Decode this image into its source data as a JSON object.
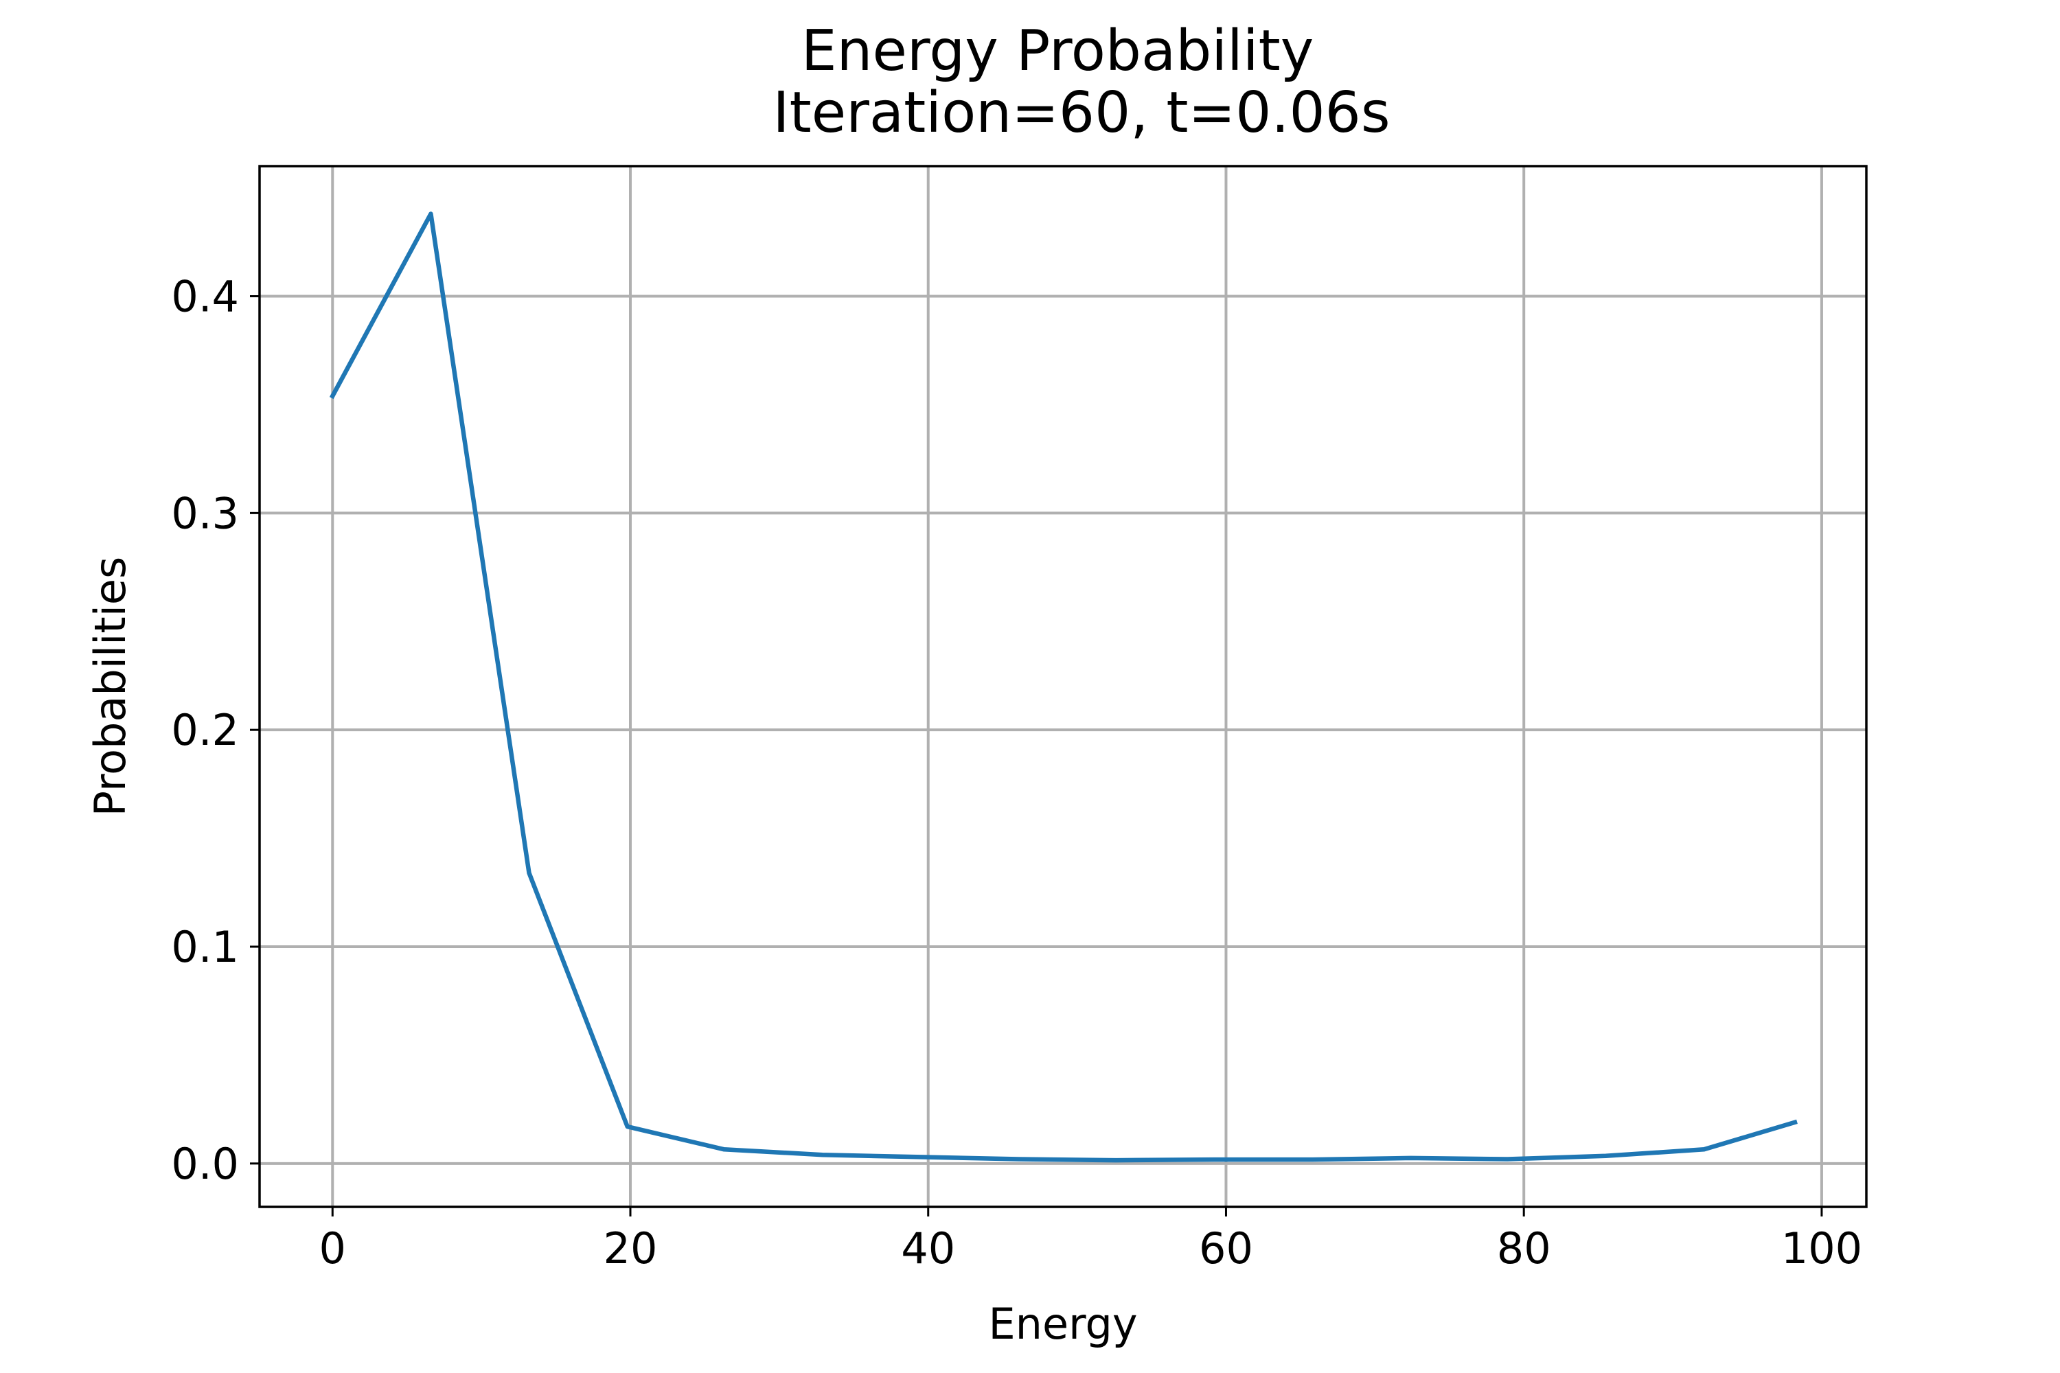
{
  "chart_data": {
    "type": "line",
    "title": "Energy Probability",
    "subtitle": "Iteration=60, t=0.06s",
    "xlabel": "Energy",
    "ylabel": "Probabilities",
    "xlim": [
      -4.9,
      103.0
    ],
    "ylim": [
      -0.02,
      0.46
    ],
    "xticks": [
      0,
      20,
      40,
      60,
      80,
      100
    ],
    "yticks": [
      0.0,
      0.1,
      0.2,
      0.3,
      0.4
    ],
    "xtick_labels": [
      "0",
      "20",
      "40",
      "60",
      "80",
      "100"
    ],
    "ytick_labels": [
      "0.0",
      "0.1",
      "0.2",
      "0.3",
      "0.4"
    ],
    "grid": true,
    "series": [
      {
        "color": "#1f77b4",
        "x": [
          0,
          6.6,
          13.2,
          19.8,
          26.3,
          32.9,
          39.5,
          46.1,
          52.6,
          59.2,
          65.8,
          72.4,
          78.9,
          85.5,
          92.1,
          98.2
        ],
        "y": [
          0.354,
          0.438,
          0.134,
          0.017,
          0.0065,
          0.004,
          0.003,
          0.002,
          0.0015,
          0.0018,
          0.0018,
          0.0025,
          0.002,
          0.0035,
          0.0065,
          0.019
        ]
      }
    ]
  }
}
